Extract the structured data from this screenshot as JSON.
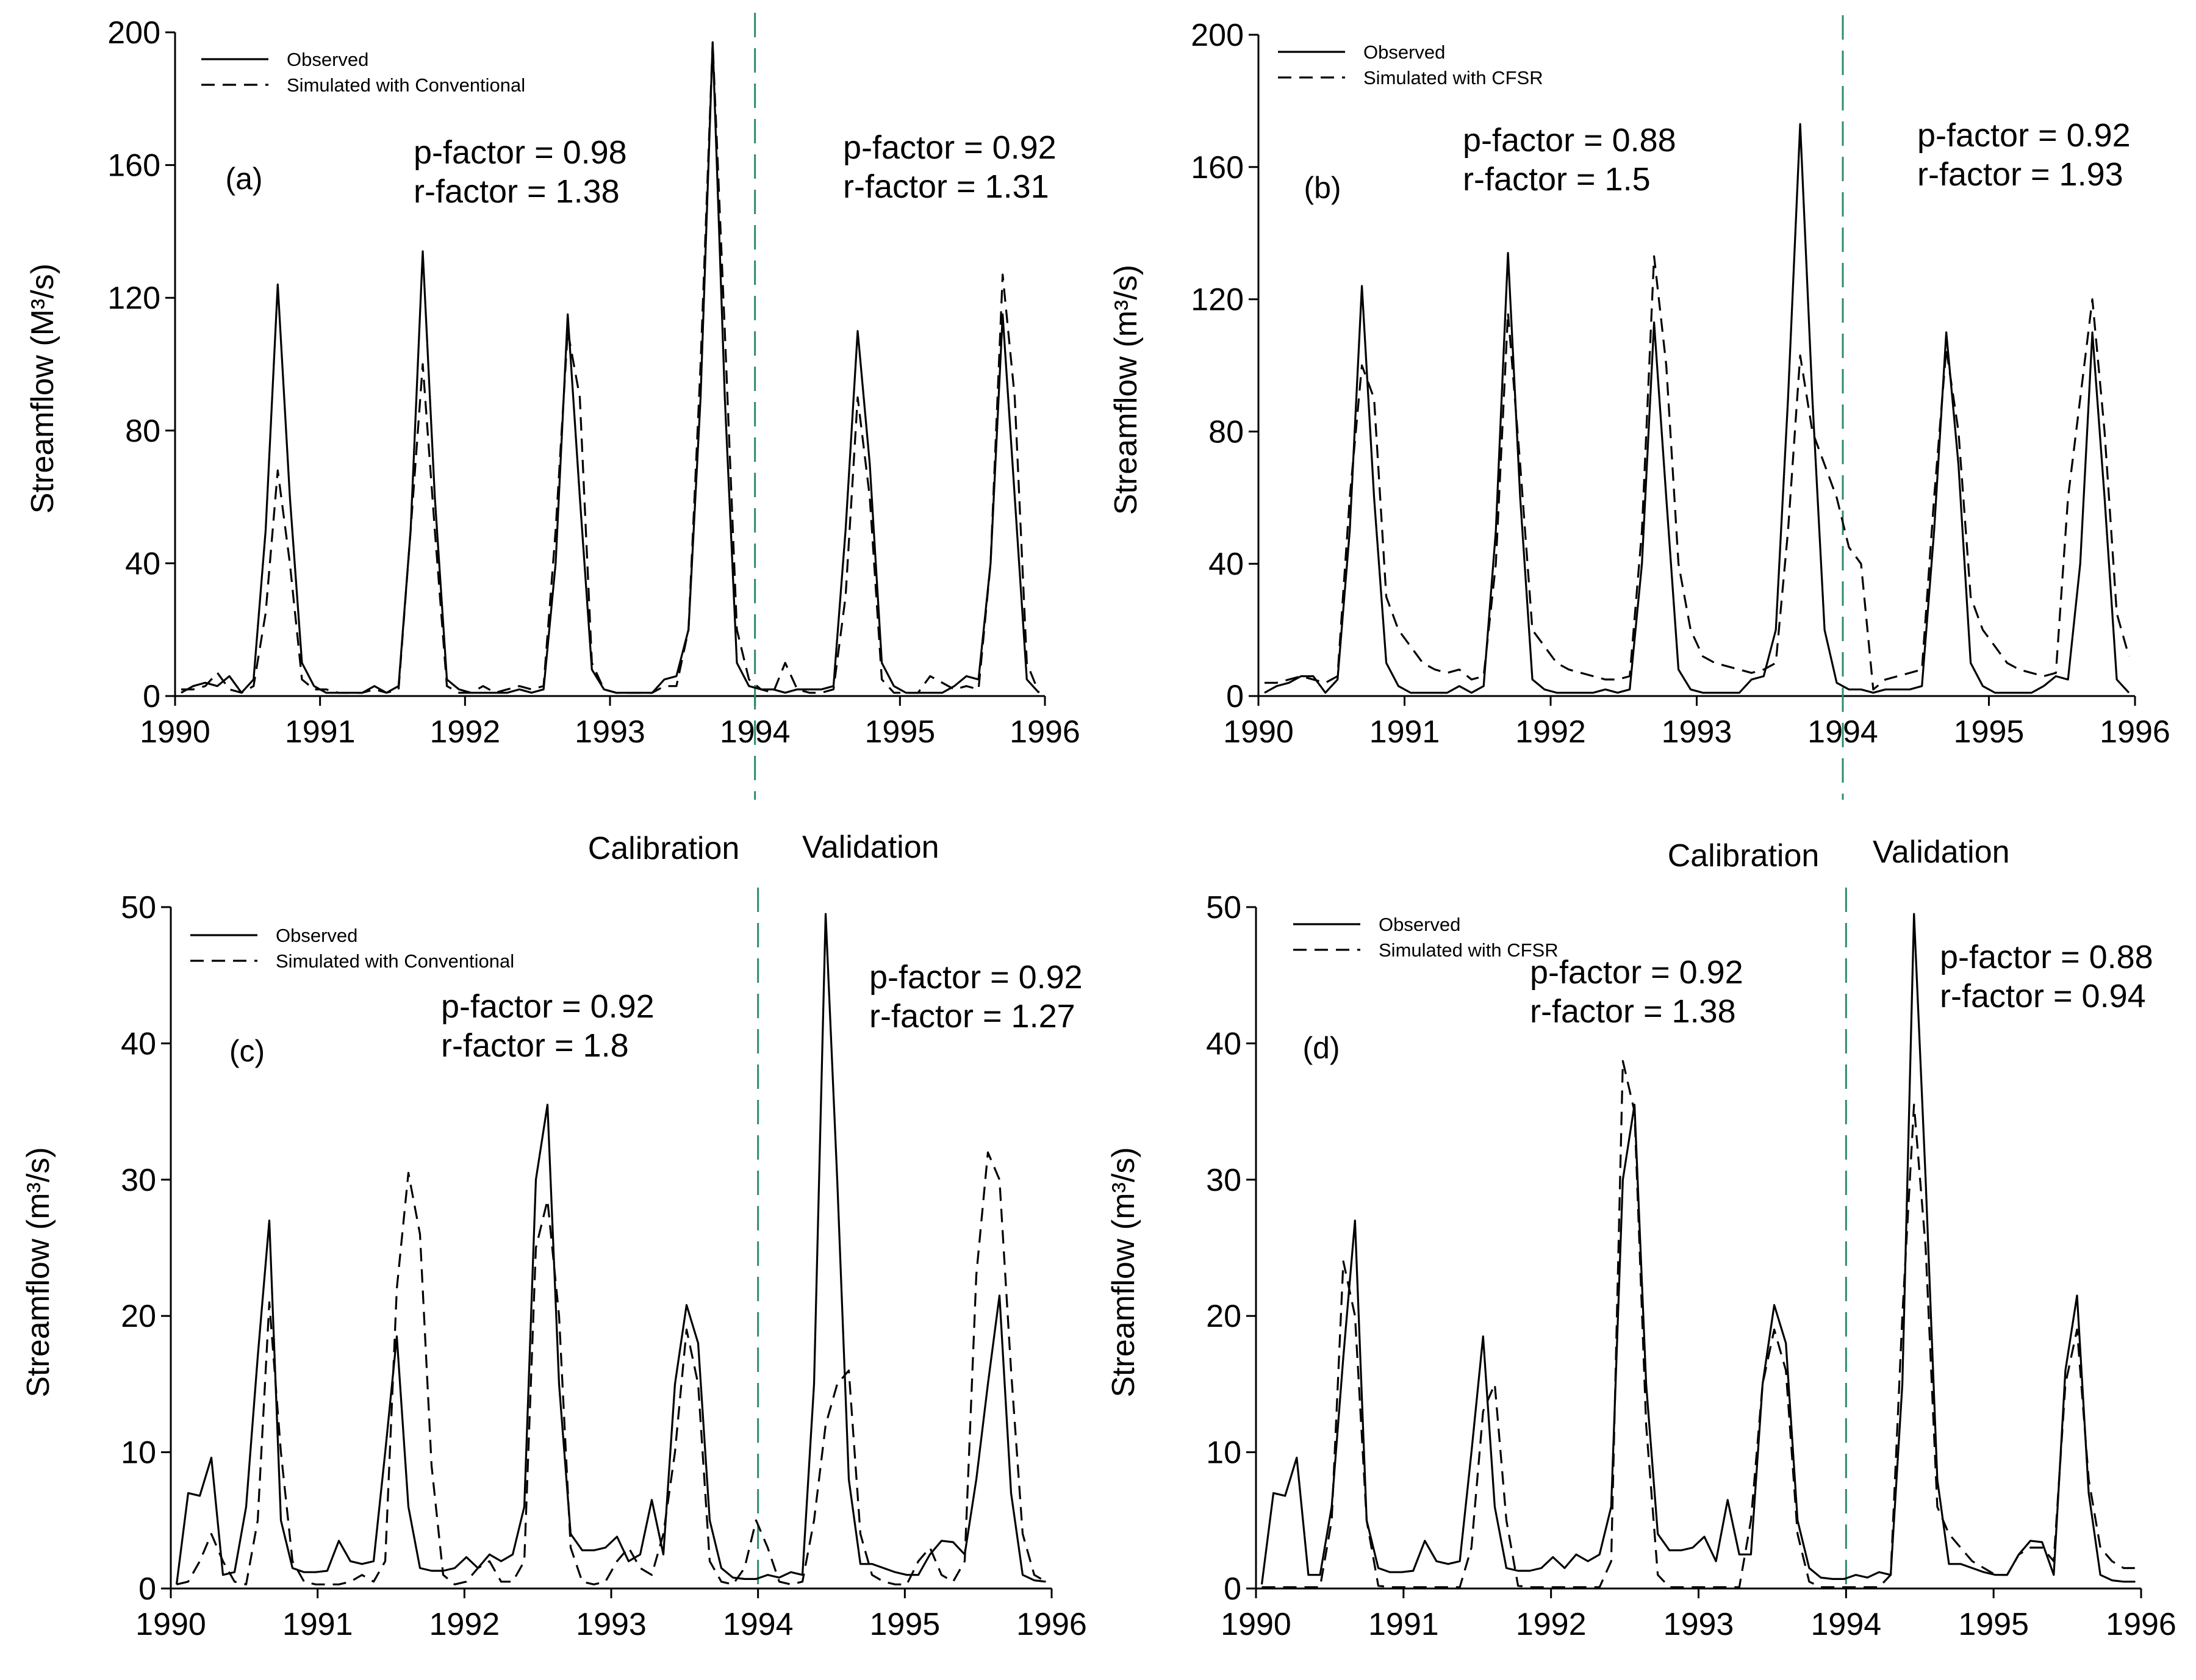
{
  "figure": {
    "colors": {
      "line": "#000000",
      "divider": "#2e8b6e",
      "background": "#ffffff"
    }
  },
  "labels": {
    "calibration": "Calibration",
    "validation": "Validation"
  },
  "chart_data": [
    {
      "id": "a",
      "type": "line",
      "panel_label": "(a)",
      "ylabel": "Streamflow (M³/s)",
      "xlim": [
        1990,
        1996
      ],
      "ylim": [
        0,
        200
      ],
      "x_ticks": [
        1990,
        1991,
        1992,
        1993,
        1994,
        1995,
        1996
      ],
      "y_ticks": [
        0,
        40,
        80,
        120,
        160,
        200
      ],
      "split_x": 1994,
      "legend": [
        "Observed",
        "Simulated with Conventional"
      ],
      "calibration_stats": [
        "p-factor = 0.98",
        "r-factor = 1.38"
      ],
      "validation_stats": [
        "p-factor = 0.92",
        "r-factor = 1.31"
      ],
      "series": [
        {
          "name": "Observed",
          "style": "solid",
          "values": [
            1,
            3,
            4,
            3,
            6,
            1,
            5,
            50,
            124,
            60,
            10,
            3,
            1,
            1,
            1,
            1,
            3,
            1,
            3,
            50,
            134,
            60,
            5,
            2,
            1,
            1,
            1,
            1,
            2,
            1,
            2,
            40,
            115,
            60,
            8,
            2,
            1,
            1,
            1,
            1,
            5,
            6,
            20,
            90,
            197,
            90,
            10,
            3,
            2,
            2,
            1,
            2,
            2,
            2,
            3,
            50,
            110,
            70,
            10,
            3,
            1,
            1,
            1,
            1,
            3,
            6,
            5,
            40,
            115,
            60,
            5,
            1
          ]
        },
        {
          "name": "Simulated with Conventional",
          "style": "dashed",
          "values": [
            2,
            2,
            3,
            7,
            2,
            1,
            3,
            25,
            68,
            40,
            5,
            2,
            2,
            1,
            1,
            1,
            2,
            1,
            2,
            50,
            100,
            50,
            3,
            1,
            1,
            3,
            1,
            2,
            3,
            2,
            3,
            50,
            110,
            90,
            10,
            2,
            1,
            1,
            1,
            1,
            3,
            3,
            20,
            100,
            197,
            110,
            20,
            5,
            2,
            1,
            10,
            2,
            1,
            1,
            2,
            30,
            90,
            60,
            5,
            1,
            1,
            1,
            6,
            4,
            2,
            3,
            2,
            40,
            127,
            90,
            10,
            1
          ]
        }
      ]
    },
    {
      "id": "b",
      "type": "line",
      "panel_label": "(b)",
      "ylabel": "Streamflow (m³/s)",
      "xlim": [
        1990,
        1996
      ],
      "ylim": [
        0,
        200
      ],
      "x_ticks": [
        1990,
        1991,
        1992,
        1993,
        1994,
        1995,
        1996
      ],
      "y_ticks": [
        0,
        40,
        80,
        120,
        160,
        200
      ],
      "split_x": 1994,
      "legend": [
        "Observed",
        "Simulated with CFSR"
      ],
      "calibration_stats": [
        "p-factor = 0.88",
        "r-factor = 1.5"
      ],
      "validation_stats": [
        "p-factor = 0.92",
        "r-factor = 1.93"
      ],
      "series": [
        {
          "name": "Observed",
          "style": "solid",
          "values": [
            1,
            3,
            4,
            6,
            6,
            1,
            5,
            50,
            124,
            60,
            10,
            3,
            1,
            1,
            1,
            1,
            3,
            1,
            3,
            50,
            134,
            60,
            5,
            2,
            1,
            1,
            1,
            1,
            2,
            1,
            2,
            40,
            113,
            60,
            8,
            2,
            1,
            1,
            1,
            1,
            5,
            6,
            20,
            90,
            173,
            90,
            20,
            4,
            2,
            2,
            1,
            2,
            2,
            2,
            3,
            50,
            110,
            70,
            10,
            3,
            1,
            1,
            1,
            1,
            3,
            6,
            5,
            40,
            110,
            60,
            5,
            1
          ]
        },
        {
          "name": "Simulated with CFSR",
          "style": "dashed",
          "values": [
            4,
            4,
            5,
            6,
            5,
            4,
            6,
            60,
            100,
            90,
            30,
            20,
            15,
            10,
            8,
            7,
            8,
            5,
            6,
            40,
            116,
            70,
            20,
            15,
            10,
            8,
            7,
            6,
            5,
            5,
            6,
            50,
            133,
            100,
            40,
            20,
            12,
            10,
            9,
            8,
            7,
            8,
            10,
            50,
            103,
            80,
            70,
            60,
            45,
            40,
            2,
            5,
            6,
            7,
            8,
            60,
            105,
            80,
            30,
            20,
            15,
            10,
            8,
            7,
            6,
            7,
            60,
            90,
            120,
            80,
            25,
            12
          ]
        }
      ]
    },
    {
      "id": "c",
      "type": "line",
      "panel_label": "(c)",
      "ylabel": "Streamflow (m³/s)",
      "xlim": [
        1990,
        1996
      ],
      "ylim": [
        0,
        50
      ],
      "x_ticks": [
        1990,
        1991,
        1992,
        1993,
        1994,
        1995,
        1996
      ],
      "y_ticks": [
        0,
        10,
        20,
        30,
        40,
        50
      ],
      "split_x": 1994,
      "legend": [
        "Observed",
        "Simulated with Conventional"
      ],
      "calibration_stats": [
        "p-factor = 0.92",
        "r-factor = 1.8"
      ],
      "validation_stats": [
        "p-factor = 0.92",
        "r-factor = 1.27"
      ],
      "series": [
        {
          "name": "Observed",
          "style": "solid",
          "values": [
            0.3,
            7,
            6.8,
            9.6,
            1,
            1.2,
            6,
            17,
            27,
            5,
            1.5,
            1.2,
            1.2,
            1.3,
            3.5,
            2,
            1.8,
            2,
            10,
            18.5,
            6,
            1.5,
            1.3,
            1.3,
            1.5,
            2.3,
            1.5,
            2.5,
            2,
            2.5,
            6,
            30,
            35.5,
            15,
            4,
            2.8,
            2.8,
            3,
            3.8,
            2,
            2.5,
            6.5,
            2.5,
            15,
            20.8,
            18,
            5,
            1.5,
            0.8,
            0.7,
            0.7,
            1,
            0.8,
            1.2,
            1,
            15,
            49.5,
            30,
            8,
            1.8,
            1.8,
            1.5,
            1.2,
            1,
            1,
            2.5,
            3.5,
            3.4,
            2.5,
            8,
            15,
            21.5,
            7,
            1,
            0.6,
            0.5
          ]
        },
        {
          "name": "Simulated with Conventional",
          "style": "dashed",
          "values": [
            0.3,
            0.5,
            2,
            4,
            2,
            0.5,
            0.3,
            5,
            21,
            10,
            2,
            0.5,
            0.3,
            0.3,
            0.3,
            0.5,
            1,
            0.5,
            2,
            22,
            30.5,
            26,
            9,
            1,
            0.3,
            0.5,
            1.5,
            2,
            0.5,
            0.5,
            2,
            25,
            28.5,
            20,
            3,
            0.5,
            0.3,
            0.5,
            2,
            3,
            1.5,
            1,
            4,
            10,
            19,
            15,
            2,
            0.5,
            0.3,
            1.5,
            5,
            3,
            0.5,
            0.3,
            0.5,
            5,
            12,
            15,
            16,
            4,
            1,
            0.5,
            0.3,
            0.3,
            2,
            3,
            1,
            0.5,
            2,
            23,
            32,
            30,
            16,
            4,
            1,
            0.5
          ]
        }
      ]
    },
    {
      "id": "d",
      "type": "line",
      "panel_label": "(d)",
      "ylabel": "Streamflow (m³/s)",
      "xlim": [
        1990,
        1996
      ],
      "ylim": [
        0,
        50
      ],
      "x_ticks": [
        1990,
        1991,
        1992,
        1993,
        1994,
        1995,
        1996
      ],
      "y_ticks": [
        0,
        10,
        20,
        30,
        40,
        50
      ],
      "split_x": 1994,
      "legend": [
        "Observed",
        "Simulated with CFSR"
      ],
      "calibration_stats": [
        "p-factor = 0.92",
        "r-factor = 1.38"
      ],
      "validation_stats": [
        "p-factor = 0.88",
        "r-factor = 0.94"
      ],
      "series": [
        {
          "name": "Observed",
          "style": "solid",
          "values": [
            0.3,
            7,
            6.8,
            9.6,
            1,
            1,
            6,
            17,
            27,
            5,
            1.5,
            1.2,
            1.2,
            1.3,
            3.5,
            2,
            1.8,
            2,
            10,
            18.5,
            6,
            1.5,
            1.3,
            1.3,
            1.5,
            2.3,
            1.5,
            2.5,
            2,
            2.5,
            6,
            30,
            35.5,
            15,
            4,
            2.8,
            2.8,
            3,
            3.8,
            2,
            6.5,
            2.5,
            2.5,
            15,
            20.8,
            18,
            5,
            1.5,
            0.8,
            0.7,
            0.7,
            1,
            0.8,
            1.2,
            1,
            15,
            49.5,
            30,
            8,
            1.8,
            1.8,
            1.5,
            1.2,
            1,
            1,
            2.5,
            3.5,
            3.4,
            1,
            16,
            21.5,
            7,
            1,
            0.6,
            0.5,
            0.5
          ]
        },
        {
          "name": "Simulated with CFSR",
          "style": "dashed",
          "values": [
            0.1,
            0.1,
            0.1,
            0.1,
            0.1,
            0.1,
            5,
            24,
            20,
            5,
            0.2,
            0.1,
            0.1,
            0.1,
            0.1,
            0.1,
            0.1,
            0.1,
            3,
            13,
            15,
            5,
            0.2,
            0.1,
            0.1,
            0.1,
            0.1,
            0.1,
            0.1,
            0.1,
            2,
            38.7,
            35,
            12,
            1,
            0.1,
            0.1,
            0.1,
            0.1,
            0.1,
            0.1,
            0.1,
            5,
            15,
            19,
            16,
            4,
            0.5,
            0.1,
            0.1,
            0.1,
            0.1,
            0.1,
            0.1,
            1,
            20,
            35.5,
            25,
            6,
            4,
            3,
            2,
            1.5,
            1,
            1,
            2.5,
            3,
            3,
            2,
            15,
            19,
            8,
            3,
            2,
            1.5,
            1.5
          ]
        }
      ]
    }
  ]
}
